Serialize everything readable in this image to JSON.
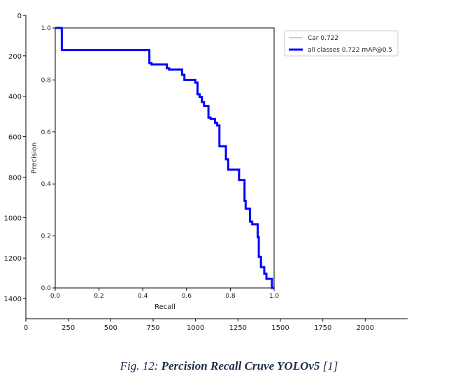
{
  "outer_axes": {
    "y_ticks": [
      0,
      200,
      400,
      600,
      800,
      1000,
      1200,
      1400
    ],
    "x_ticks": [
      0,
      250,
      500,
      750,
      1000,
      1250,
      1500,
      1750,
      2000
    ],
    "xlim": [
      0,
      2250
    ],
    "ylim": [
      0,
      1500
    ]
  },
  "caption": {
    "prefix": "Fig. 12: ",
    "title": "Percision Recall Cruve YOLOv5",
    "suffix": " [1]"
  },
  "chart_data": {
    "type": "line",
    "title": "",
    "xlabel": "Recall",
    "ylabel": "Precision",
    "xlim": [
      0,
      1
    ],
    "ylim": [
      0,
      1
    ],
    "x_ticks": [
      "0.0",
      "0.2",
      "0.4",
      "0.6",
      "0.8",
      "1.0"
    ],
    "y_ticks": [
      "0.0",
      "0.2",
      "0.4",
      "0.6",
      "0.8",
      "1.0"
    ],
    "grid": false,
    "legend_position": "top-right",
    "series": [
      {
        "name": "Car 0.722",
        "color": "#74a9d8",
        "line_width": "thin",
        "points": [
          [
            0.0,
            1.0
          ],
          [
            0.03,
            1.0
          ],
          [
            0.03,
            0.915
          ],
          [
            0.43,
            0.915
          ],
          [
            0.43,
            0.865
          ],
          [
            0.44,
            0.865
          ],
          [
            0.44,
            0.86
          ],
          [
            0.51,
            0.86
          ],
          [
            0.51,
            0.845
          ],
          [
            0.52,
            0.845
          ],
          [
            0.52,
            0.84
          ],
          [
            0.58,
            0.84
          ],
          [
            0.58,
            0.82
          ],
          [
            0.59,
            0.82
          ],
          [
            0.59,
            0.8
          ],
          [
            0.64,
            0.8
          ],
          [
            0.64,
            0.79
          ],
          [
            0.65,
            0.79
          ],
          [
            0.65,
            0.745
          ],
          [
            0.66,
            0.745
          ],
          [
            0.66,
            0.735
          ],
          [
            0.67,
            0.735
          ],
          [
            0.67,
            0.715
          ],
          [
            0.68,
            0.715
          ],
          [
            0.68,
            0.7
          ],
          [
            0.7,
            0.7
          ],
          [
            0.7,
            0.655
          ],
          [
            0.71,
            0.655
          ],
          [
            0.71,
            0.65
          ],
          [
            0.73,
            0.65
          ],
          [
            0.73,
            0.635
          ],
          [
            0.74,
            0.635
          ],
          [
            0.74,
            0.625
          ],
          [
            0.75,
            0.625
          ],
          [
            0.75,
            0.545
          ],
          [
            0.78,
            0.545
          ],
          [
            0.78,
            0.495
          ],
          [
            0.79,
            0.495
          ],
          [
            0.79,
            0.455
          ],
          [
            0.84,
            0.455
          ],
          [
            0.84,
            0.415
          ],
          [
            0.865,
            0.415
          ],
          [
            0.865,
            0.335
          ],
          [
            0.87,
            0.335
          ],
          [
            0.87,
            0.305
          ],
          [
            0.89,
            0.305
          ],
          [
            0.89,
            0.255
          ],
          [
            0.9,
            0.255
          ],
          [
            0.9,
            0.245
          ],
          [
            0.925,
            0.245
          ],
          [
            0.925,
            0.195
          ],
          [
            0.93,
            0.195
          ],
          [
            0.93,
            0.12
          ],
          [
            0.94,
            0.12
          ],
          [
            0.94,
            0.08
          ],
          [
            0.955,
            0.08
          ],
          [
            0.955,
            0.055
          ],
          [
            0.965,
            0.055
          ],
          [
            0.965,
            0.035
          ],
          [
            0.99,
            0.035
          ],
          [
            0.99,
            0.0
          ],
          [
            1.0,
            0.0
          ]
        ]
      },
      {
        "name": "all classes 0.722 mAP@0.5",
        "color": "#0000ff",
        "line_width": "thick",
        "points": [
          [
            0.0,
            1.0
          ],
          [
            0.03,
            1.0
          ],
          [
            0.03,
            0.915
          ],
          [
            0.43,
            0.915
          ],
          [
            0.43,
            0.865
          ],
          [
            0.44,
            0.865
          ],
          [
            0.44,
            0.86
          ],
          [
            0.51,
            0.86
          ],
          [
            0.51,
            0.845
          ],
          [
            0.52,
            0.845
          ],
          [
            0.52,
            0.84
          ],
          [
            0.58,
            0.84
          ],
          [
            0.58,
            0.82
          ],
          [
            0.59,
            0.82
          ],
          [
            0.59,
            0.8
          ],
          [
            0.64,
            0.8
          ],
          [
            0.64,
            0.79
          ],
          [
            0.65,
            0.79
          ],
          [
            0.65,
            0.745
          ],
          [
            0.66,
            0.745
          ],
          [
            0.66,
            0.735
          ],
          [
            0.67,
            0.735
          ],
          [
            0.67,
            0.715
          ],
          [
            0.68,
            0.715
          ],
          [
            0.68,
            0.7
          ],
          [
            0.7,
            0.7
          ],
          [
            0.7,
            0.655
          ],
          [
            0.71,
            0.655
          ],
          [
            0.71,
            0.65
          ],
          [
            0.73,
            0.65
          ],
          [
            0.73,
            0.635
          ],
          [
            0.74,
            0.635
          ],
          [
            0.74,
            0.625
          ],
          [
            0.75,
            0.625
          ],
          [
            0.75,
            0.545
          ],
          [
            0.78,
            0.545
          ],
          [
            0.78,
            0.495
          ],
          [
            0.79,
            0.495
          ],
          [
            0.79,
            0.455
          ],
          [
            0.84,
            0.455
          ],
          [
            0.84,
            0.415
          ],
          [
            0.865,
            0.415
          ],
          [
            0.865,
            0.335
          ],
          [
            0.87,
            0.335
          ],
          [
            0.87,
            0.305
          ],
          [
            0.89,
            0.305
          ],
          [
            0.89,
            0.255
          ],
          [
            0.9,
            0.255
          ],
          [
            0.9,
            0.245
          ],
          [
            0.925,
            0.245
          ],
          [
            0.925,
            0.195
          ],
          [
            0.93,
            0.195
          ],
          [
            0.93,
            0.12
          ],
          [
            0.94,
            0.12
          ],
          [
            0.94,
            0.08
          ],
          [
            0.955,
            0.08
          ],
          [
            0.955,
            0.055
          ],
          [
            0.965,
            0.055
          ],
          [
            0.965,
            0.035
          ],
          [
            0.99,
            0.035
          ],
          [
            0.99,
            0.0
          ],
          [
            1.0,
            0.0
          ]
        ]
      }
    ]
  }
}
